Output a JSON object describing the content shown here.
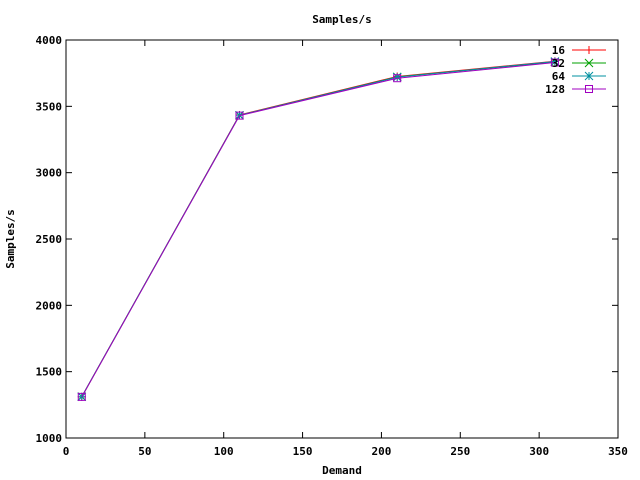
{
  "chart_data": {
    "type": "line",
    "title": "Samples/s",
    "xlabel": "Demand",
    "ylabel": "Samples/s",
    "xlim": [
      0,
      350
    ],
    "ylim": [
      1000,
      4000
    ],
    "xticks": [
      0,
      50,
      100,
      150,
      200,
      250,
      300,
      350
    ],
    "yticks": [
      1000,
      1500,
      2000,
      2500,
      3000,
      3500,
      4000
    ],
    "grid": false,
    "legend_position": "top-right",
    "x": [
      10,
      110,
      210,
      310
    ],
    "series": [
      {
        "name": "16",
        "color": "#ff0000",
        "marker": "plus",
        "values": [
          1310,
          3435,
          3725,
          3840
        ]
      },
      {
        "name": "32",
        "color": "#00a000",
        "marker": "cross",
        "values": [
          1312,
          3432,
          3722,
          3835
        ]
      },
      {
        "name": "64",
        "color": "#0090a0",
        "marker": "star",
        "values": [
          1311,
          3433,
          3720,
          3838
        ]
      },
      {
        "name": "128",
        "color": "#a000c0",
        "marker": "square",
        "values": [
          1310,
          3430,
          3712,
          3830
        ]
      }
    ]
  }
}
